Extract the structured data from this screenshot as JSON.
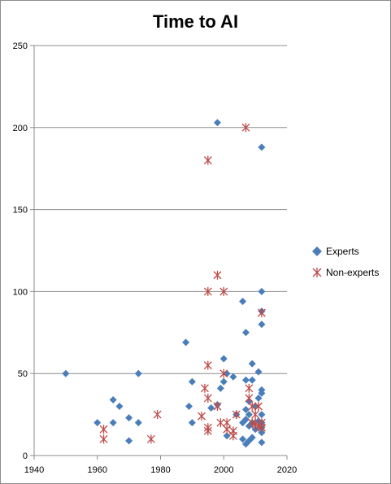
{
  "chart_data": {
    "type": "scatter",
    "title": "Time to AI",
    "xlabel": "",
    "ylabel": "",
    "xlim": [
      1940,
      2020
    ],
    "ylim": [
      0,
      250
    ],
    "x_ticks": [
      1940,
      1960,
      1980,
      2000,
      2020
    ],
    "y_ticks": [
      0,
      50,
      100,
      150,
      200,
      250
    ],
    "grid": "horizontal",
    "legend_position": "right",
    "series": [
      {
        "name": "Experts",
        "marker": "diamond",
        "color": "#4a7ebb",
        "points": [
          [
            1950,
            50
          ],
          [
            1960,
            20
          ],
          [
            1965,
            34
          ],
          [
            1965,
            20
          ],
          [
            1967,
            30
          ],
          [
            1970,
            23
          ],
          [
            1970,
            9
          ],
          [
            1973,
            50
          ],
          [
            1973,
            20
          ],
          [
            1988,
            69
          ],
          [
            1989,
            30
          ],
          [
            1990,
            45
          ],
          [
            1990,
            20
          ],
          [
            1996,
            29
          ],
          [
            1998,
            203
          ],
          [
            1998,
            31
          ],
          [
            1999,
            41
          ],
          [
            2000,
            59
          ],
          [
            2000,
            45
          ],
          [
            2001,
            50
          ],
          [
            2001,
            12
          ],
          [
            2003,
            48
          ],
          [
            2004,
            25
          ],
          [
            2006,
            94
          ],
          [
            2006,
            20
          ],
          [
            2006,
            10
          ],
          [
            2007,
            75
          ],
          [
            2007,
            46
          ],
          [
            2007,
            28
          ],
          [
            2007,
            22
          ],
          [
            2007,
            7
          ],
          [
            2008,
            33
          ],
          [
            2008,
            25
          ],
          [
            2008,
            18
          ],
          [
            2008,
            9
          ],
          [
            2009,
            56
          ],
          [
            2009,
            46
          ],
          [
            2009,
            20
          ],
          [
            2009,
            11
          ],
          [
            2010,
            30
          ],
          [
            2010,
            16
          ],
          [
            2011,
            51
          ],
          [
            2011,
            35
          ],
          [
            2011,
            21
          ],
          [
            2012,
            188
          ],
          [
            2012,
            100
          ],
          [
            2012,
            88
          ],
          [
            2012,
            80
          ],
          [
            2012,
            40
          ],
          [
            2012,
            38
          ],
          [
            2012,
            25
          ],
          [
            2012,
            20
          ],
          [
            2012,
            17
          ],
          [
            2012,
            14
          ],
          [
            2012,
            8
          ]
        ]
      },
      {
        "name": "Non-experts",
        "marker": "asterisk",
        "color": "#be4b48",
        "points": [
          [
            1962,
            16
          ],
          [
            1962,
            10
          ],
          [
            1977,
            10
          ],
          [
            1979,
            25
          ],
          [
            1993,
            24
          ],
          [
            1994,
            41
          ],
          [
            1995,
            180
          ],
          [
            1995,
            100
          ],
          [
            1995,
            55
          ],
          [
            1995,
            35
          ],
          [
            1995,
            17
          ],
          [
            1995,
            15
          ],
          [
            1998,
            110
          ],
          [
            1998,
            30
          ],
          [
            1999,
            20
          ],
          [
            2000,
            100
          ],
          [
            2000,
            50
          ],
          [
            2001,
            20
          ],
          [
            2001,
            16
          ],
          [
            2003,
            15
          ],
          [
            2003,
            12
          ],
          [
            2004,
            25
          ],
          [
            2007,
            200
          ],
          [
            2008,
            41
          ],
          [
            2008,
            35
          ],
          [
            2009,
            30
          ],
          [
            2009,
            20
          ],
          [
            2010,
            25
          ],
          [
            2010,
            19
          ],
          [
            2011,
            30
          ],
          [
            2011,
            18
          ],
          [
            2012,
            87
          ],
          [
            2012,
            20
          ],
          [
            2012,
            17
          ]
        ]
      }
    ]
  }
}
